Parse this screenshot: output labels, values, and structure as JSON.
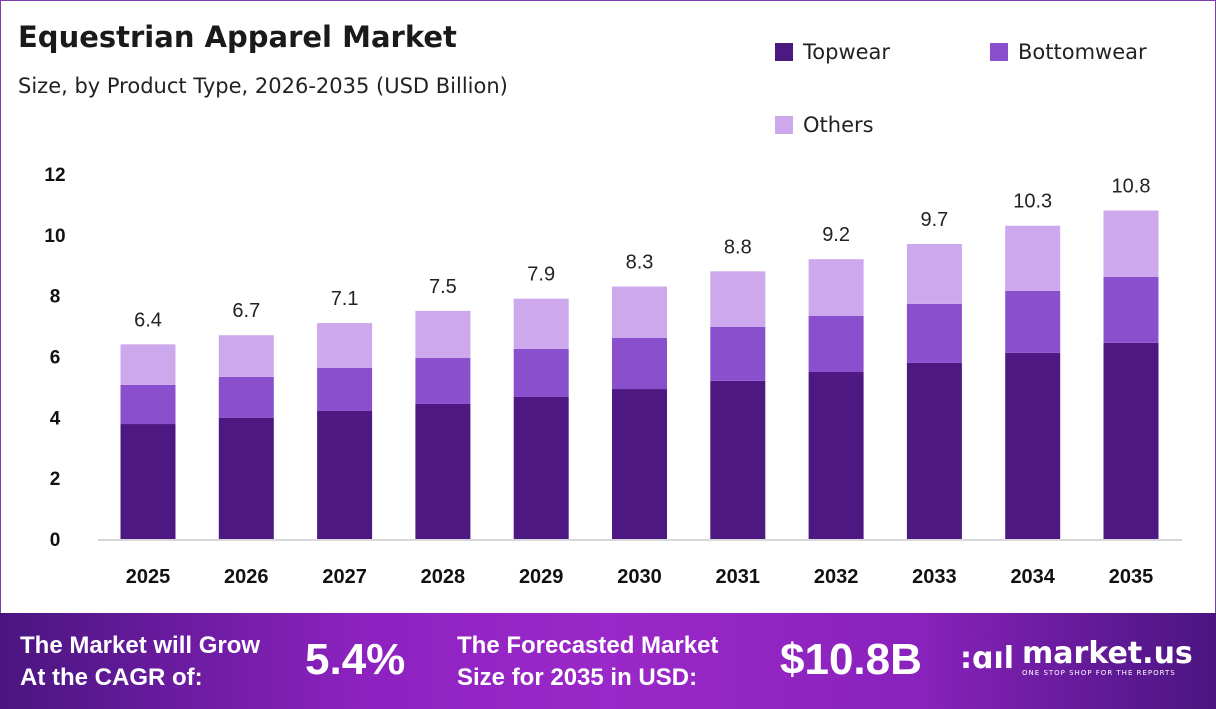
{
  "colors": {
    "Topwear": "#4e1882",
    "Bottomwear": "#8a4fcc",
    "Others": "#cda8ec"
  },
  "chart_data": {
    "type": "bar",
    "stacked": true,
    "title": "Equestrian Apparel Market",
    "subtitle": "Size, by Product Type, 2026-2035 (USD Billion)",
    "categories": [
      "2025",
      "2026",
      "2027",
      "2028",
      "2029",
      "2030",
      "2031",
      "2032",
      "2033",
      "2034",
      "2035"
    ],
    "series": [
      {
        "name": "Topwear",
        "values": [
          3.78,
          3.98,
          4.21,
          4.44,
          4.67,
          4.93,
          5.2,
          5.49,
          5.79,
          6.12,
          6.45
        ]
      },
      {
        "name": "Bottomwear",
        "values": [
          1.29,
          1.35,
          1.42,
          1.51,
          1.58,
          1.68,
          1.77,
          1.85,
          1.94,
          2.04,
          2.17
        ]
      },
      {
        "name": "Others",
        "values": [
          1.33,
          1.37,
          1.47,
          1.55,
          1.65,
          1.69,
          1.83,
          1.86,
          1.97,
          2.14,
          2.18
        ]
      }
    ],
    "totals": [
      "6.4",
      "6.7",
      "7.1",
      "7.5",
      "7.9",
      "8.3",
      "8.8",
      "9.2",
      "9.7",
      "10.3",
      "10.8"
    ],
    "yticks": [
      "0",
      "2",
      "4",
      "6",
      "8",
      "10",
      "12"
    ],
    "ylim": [
      0,
      12
    ],
    "xlabel": "",
    "ylabel": "",
    "grid": false,
    "legend": "top-right"
  },
  "footer": {
    "cagr_label_1": "The Market will Grow",
    "cagr_label_2": "At the CAGR of:",
    "cagr_value": "5.4%",
    "forecast_label_1": "The Forecasted Market",
    "forecast_label_2": "Size for 2035 in USD:",
    "forecast_value": "$10.8B",
    "logo_name": "market.us",
    "logo_tagline": "ONE STOP SHOP FOR THE REPORTS"
  }
}
